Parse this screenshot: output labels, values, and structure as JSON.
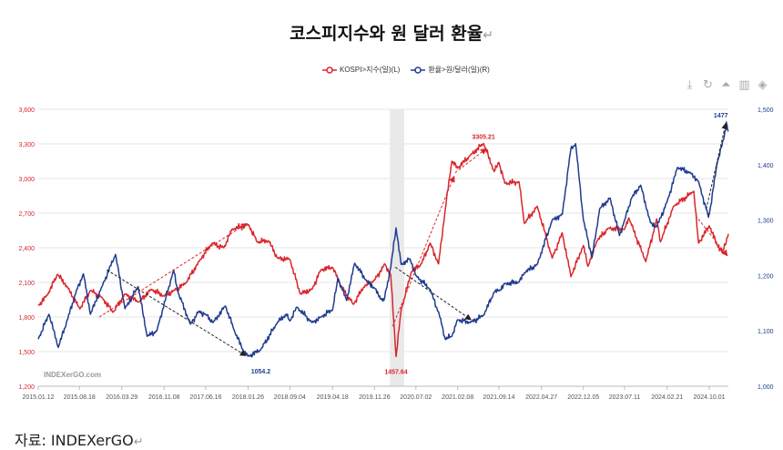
{
  "page": {
    "title": "코스피지수와 원 달러 환율",
    "return_mark": "↵",
    "source": "자료: INDEXerGO",
    "toolbar_icons": [
      "download-icon",
      "refresh-icon",
      "line-chart-icon",
      "bar-chart-icon",
      "layers-icon"
    ],
    "toolbar_glyphs": [
      "⤓",
      "↻",
      "⏶",
      "▥",
      "◈"
    ]
  },
  "chart_data": {
    "type": "line",
    "title": "코스피지수와 원 달러 환율",
    "watermark": "INDEXerGO.com",
    "legend_position": "top-center",
    "grid": true,
    "x_ticks": [
      "2015.01.12",
      "2015.08.18",
      "2016.03.29",
      "2016.11.08",
      "2017.06.16",
      "2018.01.26",
      "2018.09.04",
      "2019.04.18",
      "2019.11.26",
      "2020.07.02",
      "2021.02.08",
      "2021.09.14",
      "2022.04.27",
      "2022.12.05",
      "2023.07.11",
      "2024.02.21",
      "2024.10.01"
    ],
    "x_range": [
      "2015-01-12",
      "2025-01-10"
    ],
    "left_axis": {
      "ticks": [
        "1,200",
        "1,500",
        "1,800",
        "2,100",
        "2,400",
        "2,700",
        "3,000",
        "3,300",
        "3,600"
      ],
      "range": [
        1200,
        3600
      ],
      "color": "#d9262c"
    },
    "right_axis": {
      "ticks": [
        "1,000",
        "1,100",
        "1,200",
        "1,300",
        "1,400",
        "1,500"
      ],
      "range": [
        1000,
        1500
      ],
      "color": "#1f3b8f"
    },
    "highlight_band": [
      "2020-02-15",
      "2020-05-01"
    ],
    "series": [
      {
        "name": "KOSPI>지수(일)(L)",
        "axis": "left",
        "color": "#d9262c",
        "points": [
          [
            "2015-01-12",
            1900
          ],
          [
            "2015-03-01",
            1990
          ],
          [
            "2015-04-24",
            2170
          ],
          [
            "2015-06-15",
            2060
          ],
          [
            "2015-08-20",
            1870
          ],
          [
            "2015-10-15",
            2030
          ],
          [
            "2015-12-15",
            1970
          ],
          [
            "2016-02-12",
            1840
          ],
          [
            "2016-04-15",
            2000
          ],
          [
            "2016-06-27",
            1930
          ],
          [
            "2016-09-01",
            2040
          ],
          [
            "2016-11-08",
            1980
          ],
          [
            "2016-12-30",
            2030
          ],
          [
            "2017-03-01",
            2090
          ],
          [
            "2017-05-15",
            2290
          ],
          [
            "2017-07-20",
            2440
          ],
          [
            "2017-09-20",
            2400
          ],
          [
            "2017-11-02",
            2560
          ],
          [
            "2018-01-29",
            2600
          ],
          [
            "2018-03-15",
            2450
          ],
          [
            "2018-05-15",
            2460
          ],
          [
            "2018-07-01",
            2310
          ],
          [
            "2018-09-04",
            2300
          ],
          [
            "2018-10-29",
            2000
          ],
          [
            "2018-12-31",
            2040
          ],
          [
            "2019-02-15",
            2210
          ],
          [
            "2019-04-18",
            2230
          ],
          [
            "2019-06-01",
            2070
          ],
          [
            "2019-08-06",
            1910
          ],
          [
            "2019-09-30",
            2060
          ],
          [
            "2019-11-26",
            2120
          ],
          [
            "2020-01-20",
            2260
          ],
          [
            "2020-02-20",
            2160
          ],
          [
            "2020-03-19",
            1457
          ],
          [
            "2020-04-15",
            1860
          ],
          [
            "2020-06-08",
            2190
          ],
          [
            "2020-07-31",
            2260
          ],
          [
            "2020-09-15",
            2440
          ],
          [
            "2020-10-30",
            2260
          ],
          [
            "2020-12-04",
            2730
          ],
          [
            "2021-01-08",
            3150
          ],
          [
            "2021-02-08",
            3090
          ],
          [
            "2021-04-15",
            3200
          ],
          [
            "2021-06-25",
            3305
          ],
          [
            "2021-08-20",
            3060
          ],
          [
            "2021-09-14",
            3140
          ],
          [
            "2021-10-15",
            2960
          ],
          [
            "2021-12-30",
            2970
          ],
          [
            "2022-01-27",
            2610
          ],
          [
            "2022-04-05",
            2760
          ],
          [
            "2022-06-23",
            2310
          ],
          [
            "2022-08-15",
            2530
          ],
          [
            "2022-09-30",
            2150
          ],
          [
            "2022-12-05",
            2420
          ],
          [
            "2022-12-29",
            2240
          ],
          [
            "2023-02-15",
            2460
          ],
          [
            "2023-04-15",
            2570
          ],
          [
            "2023-07-11",
            2560
          ],
          [
            "2023-08-02",
            2660
          ],
          [
            "2023-10-31",
            2280
          ],
          [
            "2023-12-28",
            2650
          ],
          [
            "2024-01-17",
            2450
          ],
          [
            "2024-03-26",
            2760
          ],
          [
            "2024-07-11",
            2890
          ],
          [
            "2024-08-05",
            2440
          ],
          [
            "2024-10-01",
            2590
          ],
          [
            "2024-11-13",
            2420
          ],
          [
            "2024-12-09",
            2360
          ],
          [
            "2025-01-10",
            2520
          ]
        ]
      },
      {
        "name": "환율>원/달러(일)(R)",
        "axis": "right",
        "color": "#1f3b8f",
        "points": [
          [
            "2015-01-12",
            1085
          ],
          [
            "2015-03-10",
            1130
          ],
          [
            "2015-04-28",
            1070
          ],
          [
            "2015-06-15",
            1120
          ],
          [
            "2015-07-31",
            1170
          ],
          [
            "2015-09-08",
            1203
          ],
          [
            "2015-10-15",
            1130
          ],
          [
            "2015-12-15",
            1180
          ],
          [
            "2016-02-25",
            1238
          ],
          [
            "2016-04-15",
            1140
          ],
          [
            "2016-06-24",
            1180
          ],
          [
            "2016-08-10",
            1090
          ],
          [
            "2016-09-30",
            1100
          ],
          [
            "2016-12-28",
            1210
          ],
          [
            "2017-01-20",
            1170
          ],
          [
            "2017-03-27",
            1112
          ],
          [
            "2017-05-10",
            1135
          ],
          [
            "2017-06-16",
            1130
          ],
          [
            "2017-07-25",
            1115
          ],
          [
            "2017-09-28",
            1145
          ],
          [
            "2017-11-15",
            1100
          ],
          [
            "2018-01-02",
            1063
          ],
          [
            "2018-01-26",
            1054
          ],
          [
            "2018-04-01",
            1065
          ],
          [
            "2018-06-30",
            1115
          ],
          [
            "2018-08-15",
            1130
          ],
          [
            "2018-09-04",
            1118
          ],
          [
            "2018-10-11",
            1143
          ],
          [
            "2018-12-31",
            1115
          ],
          [
            "2019-02-15",
            1125
          ],
          [
            "2019-04-18",
            1138
          ],
          [
            "2019-05-17",
            1195
          ],
          [
            "2019-07-01",
            1155
          ],
          [
            "2019-08-13",
            1222
          ],
          [
            "2019-10-15",
            1190
          ],
          [
            "2019-11-26",
            1177
          ],
          [
            "2019-12-31",
            1157
          ],
          [
            "2020-01-15",
            1155
          ],
          [
            "2020-02-20",
            1215
          ],
          [
            "2020-03-19",
            1286
          ],
          [
            "2020-04-15",
            1220
          ],
          [
            "2020-06-01",
            1230
          ],
          [
            "2020-07-02",
            1200
          ],
          [
            "2020-09-15",
            1175
          ],
          [
            "2020-11-02",
            1130
          ],
          [
            "2020-12-04",
            1085
          ],
          [
            "2021-01-08",
            1090
          ],
          [
            "2021-02-08",
            1120
          ],
          [
            "2021-04-15",
            1115
          ],
          [
            "2021-06-25",
            1128
          ],
          [
            "2021-08-20",
            1170
          ],
          [
            "2021-09-14",
            1172
          ],
          [
            "2021-10-15",
            1185
          ],
          [
            "2021-12-30",
            1188
          ],
          [
            "2022-01-27",
            1205
          ],
          [
            "2022-04-05",
            1220
          ],
          [
            "2022-06-23",
            1300
          ],
          [
            "2022-08-15",
            1310
          ],
          [
            "2022-09-30",
            1430
          ],
          [
            "2022-10-25",
            1438
          ],
          [
            "2022-12-05",
            1300
          ],
          [
            "2023-01-20",
            1232
          ],
          [
            "2023-03-01",
            1320
          ],
          [
            "2023-04-25",
            1340
          ],
          [
            "2023-06-14",
            1272
          ],
          [
            "2023-07-11",
            1300
          ],
          [
            "2023-08-17",
            1340
          ],
          [
            "2023-10-04",
            1363
          ],
          [
            "2023-11-25",
            1295
          ],
          [
            "2023-12-28",
            1288
          ],
          [
            "2024-02-21",
            1333
          ],
          [
            "2024-04-16",
            1395
          ],
          [
            "2024-06-25",
            1385
          ],
          [
            "2024-08-05",
            1370
          ],
          [
            "2024-09-27",
            1305
          ],
          [
            "2024-10-01",
            1310
          ],
          [
            "2024-11-13",
            1405
          ],
          [
            "2024-12-19",
            1450
          ],
          [
            "2024-12-30",
            1477
          ],
          [
            "2025-01-10",
            1460
          ]
        ]
      }
    ],
    "annotations": [
      {
        "id": "kospi-low-2020",
        "label": "1457.64",
        "date": "2020-03-19",
        "value": 1457.64,
        "axis": "left",
        "color": "#d9262c"
      },
      {
        "id": "kospi-high-2021",
        "label": "3305.21",
        "date": "2021-06-25",
        "value": 3305.21,
        "axis": "left",
        "color": "#d9262c"
      },
      {
        "id": "fx-low-2018",
        "label": "1054.2",
        "date": "2018-01-26",
        "value": 1054.2,
        "axis": "right",
        "color": "#1f3b8f"
      },
      {
        "id": "fx-high-2024",
        "label": "1477",
        "date": "2024-12-30",
        "value": 1477,
        "axis": "right",
        "color": "#1f3b8f"
      }
    ],
    "trend_arrows": [
      {
        "color": "#d9262c",
        "from": [
          "2015-12-01",
          1800,
          "left"
        ],
        "to": [
          "2018-01-20",
          2610,
          "left"
        ]
      },
      {
        "color": "#222222",
        "from": [
          "2016-01-10",
          1210,
          "right"
        ],
        "to": [
          "2018-01-15",
          1055,
          "right"
        ]
      },
      {
        "color": "#d9262c",
        "from": [
          "2020-03-01",
          1720,
          "left"
        ],
        "to": [
          "2021-01-20",
          3020,
          "left"
        ]
      },
      {
        "color": "#d9262c",
        "from": [
          "2021-01-25",
          3050,
          "left"
        ],
        "to": [
          "2021-07-10",
          3260,
          "left"
        ]
      },
      {
        "color": "#222222",
        "from": [
          "2020-03-15",
          1215,
          "right"
        ],
        "to": [
          "2021-04-20",
          1120,
          "right"
        ]
      },
      {
        "color": "#d9262c",
        "from": [
          "2024-07-20",
          2680,
          "left"
        ],
        "to": [
          "2025-01-05",
          2330,
          "left"
        ]
      },
      {
        "color": "#222222",
        "from": [
          "2024-09-15",
          1320,
          "right"
        ],
        "to": [
          "2024-12-28",
          1475,
          "right"
        ]
      }
    ]
  }
}
